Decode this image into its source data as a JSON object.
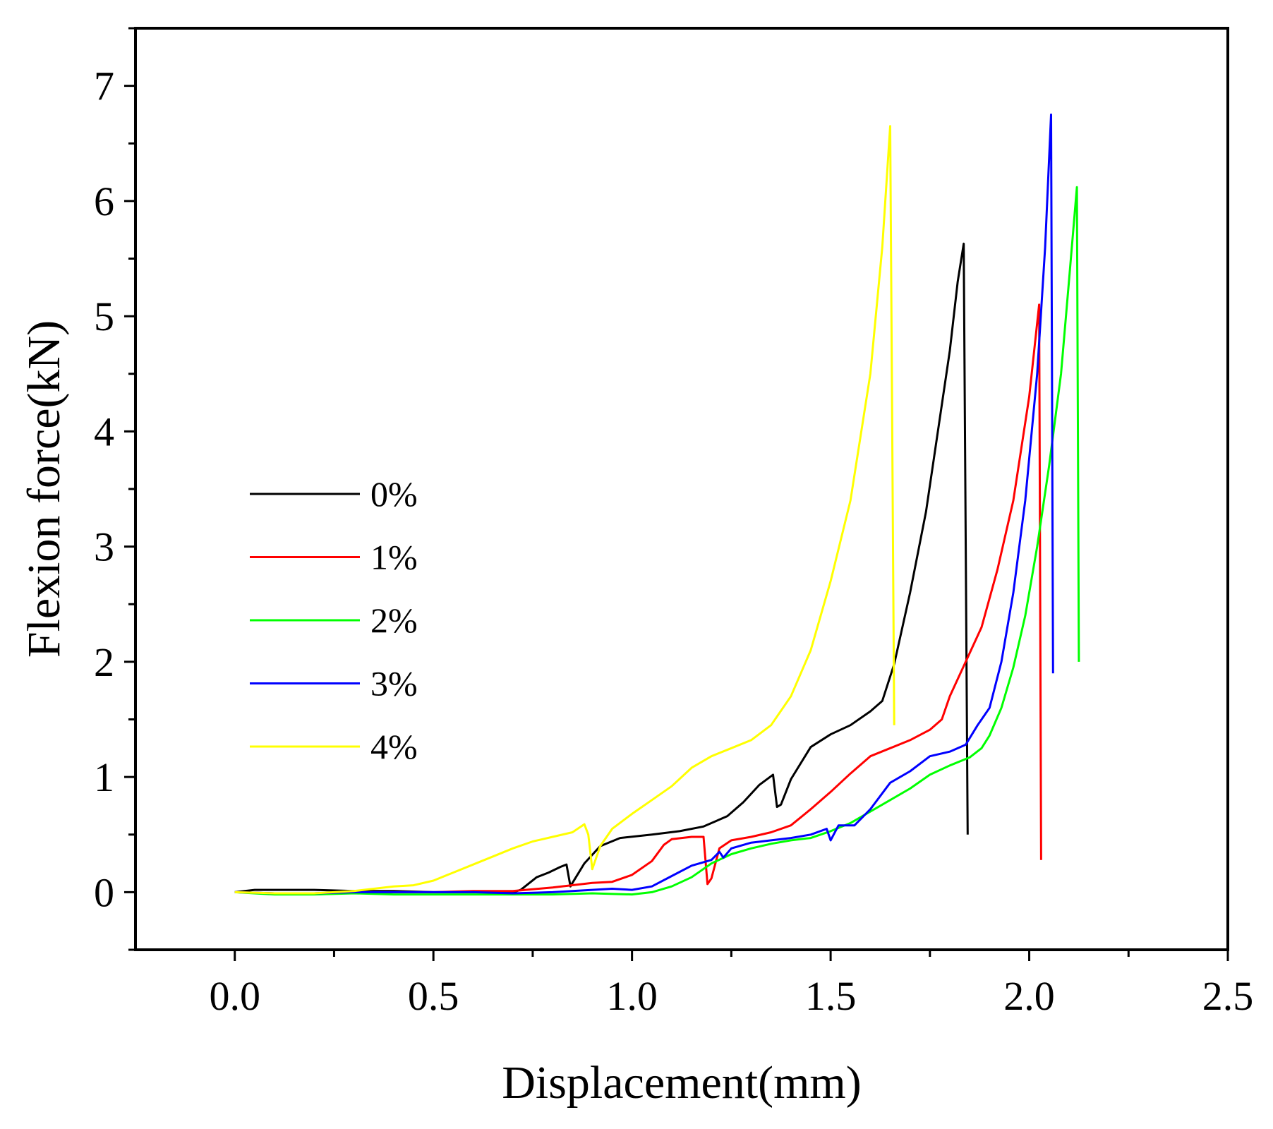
{
  "chart_data": {
    "type": "line",
    "title": "",
    "xlabel": "Displacement(mm)",
    "ylabel": "Flexion force(kN)",
    "xlim": [
      -0.25,
      2.5
    ],
    "ylim": [
      -0.5,
      7.5
    ],
    "xticks": [
      0.0,
      0.5,
      1.0,
      1.5,
      2.0,
      2.5
    ],
    "xtick_labels": [
      "0.0",
      "0.5",
      "1.0",
      "1.5",
      "2.0",
      "2.5"
    ],
    "yticks": [
      0,
      1,
      2,
      3,
      4,
      5,
      6,
      7
    ],
    "ytick_labels": [
      "0",
      "1",
      "2",
      "3",
      "4",
      "5",
      "6",
      "7"
    ],
    "grid": false,
    "legend_position": "middle-left",
    "series": [
      {
        "name": "0%",
        "color": "#000000",
        "points": [
          [
            0.0,
            0.0
          ],
          [
            0.05,
            0.02
          ],
          [
            0.1,
            0.02
          ],
          [
            0.2,
            0.02
          ],
          [
            0.3,
            0.01
          ],
          [
            0.4,
            0.01
          ],
          [
            0.5,
            0.0
          ],
          [
            0.6,
            0.0
          ],
          [
            0.7,
            0.0
          ],
          [
            0.72,
            0.02
          ],
          [
            0.76,
            0.13
          ],
          [
            0.79,
            0.17
          ],
          [
            0.82,
            0.22
          ],
          [
            0.835,
            0.24
          ],
          [
            0.845,
            0.05
          ],
          [
            0.85,
            0.08
          ],
          [
            0.88,
            0.25
          ],
          [
            0.92,
            0.4
          ],
          [
            0.97,
            0.47
          ],
          [
            1.05,
            0.5
          ],
          [
            1.12,
            0.53
          ],
          [
            1.18,
            0.57
          ],
          [
            1.24,
            0.66
          ],
          [
            1.28,
            0.78
          ],
          [
            1.32,
            0.93
          ],
          [
            1.355,
            1.02
          ],
          [
            1.365,
            0.74
          ],
          [
            1.375,
            0.76
          ],
          [
            1.4,
            0.98
          ],
          [
            1.45,
            1.26
          ],
          [
            1.5,
            1.37
          ],
          [
            1.55,
            1.45
          ],
          [
            1.6,
            1.57
          ],
          [
            1.63,
            1.66
          ],
          [
            1.66,
            1.98
          ],
          [
            1.7,
            2.6
          ],
          [
            1.74,
            3.3
          ],
          [
            1.77,
            4.0
          ],
          [
            1.8,
            4.7
          ],
          [
            1.82,
            5.3
          ],
          [
            1.835,
            5.63
          ],
          [
            1.845,
            0.5
          ]
        ]
      },
      {
        "name": "1%",
        "color": "#ff0000",
        "points": [
          [
            0.0,
            0.0
          ],
          [
            0.1,
            -0.01
          ],
          [
            0.2,
            -0.01
          ],
          [
            0.3,
            0.0
          ],
          [
            0.4,
            0.0
          ],
          [
            0.5,
            0.0
          ],
          [
            0.6,
            0.01
          ],
          [
            0.7,
            0.01
          ],
          [
            0.8,
            0.04
          ],
          [
            0.9,
            0.08
          ],
          [
            0.95,
            0.09
          ],
          [
            1.0,
            0.15
          ],
          [
            1.05,
            0.27
          ],
          [
            1.08,
            0.41
          ],
          [
            1.1,
            0.46
          ],
          [
            1.15,
            0.48
          ],
          [
            1.18,
            0.48
          ],
          [
            1.19,
            0.07
          ],
          [
            1.2,
            0.12
          ],
          [
            1.22,
            0.38
          ],
          [
            1.25,
            0.45
          ],
          [
            1.3,
            0.48
          ],
          [
            1.35,
            0.52
          ],
          [
            1.4,
            0.58
          ],
          [
            1.45,
            0.72
          ],
          [
            1.5,
            0.87
          ],
          [
            1.55,
            1.03
          ],
          [
            1.6,
            1.18
          ],
          [
            1.65,
            1.25
          ],
          [
            1.7,
            1.32
          ],
          [
            1.75,
            1.41
          ],
          [
            1.78,
            1.5
          ],
          [
            1.8,
            1.7
          ],
          [
            1.84,
            2.0
          ],
          [
            1.88,
            2.3
          ],
          [
            1.92,
            2.8
          ],
          [
            1.96,
            3.4
          ],
          [
            2.0,
            4.3
          ],
          [
            2.025,
            5.1
          ],
          [
            2.03,
            0.28
          ]
        ]
      },
      {
        "name": "2%",
        "color": "#00ff00",
        "points": [
          [
            0.0,
            0.0
          ],
          [
            0.1,
            -0.02
          ],
          [
            0.2,
            -0.02
          ],
          [
            0.3,
            -0.01
          ],
          [
            0.4,
            -0.02
          ],
          [
            0.5,
            -0.02
          ],
          [
            0.6,
            -0.02
          ],
          [
            0.7,
            -0.02
          ],
          [
            0.8,
            -0.02
          ],
          [
            0.9,
            -0.01
          ],
          [
            1.0,
            -0.02
          ],
          [
            1.05,
            0.0
          ],
          [
            1.1,
            0.05
          ],
          [
            1.15,
            0.13
          ],
          [
            1.2,
            0.25
          ],
          [
            1.25,
            0.33
          ],
          [
            1.3,
            0.38
          ],
          [
            1.35,
            0.42
          ],
          [
            1.4,
            0.45
          ],
          [
            1.45,
            0.47
          ],
          [
            1.5,
            0.53
          ],
          [
            1.55,
            0.6
          ],
          [
            1.6,
            0.7
          ],
          [
            1.65,
            0.8
          ],
          [
            1.7,
            0.9
          ],
          [
            1.75,
            1.02
          ],
          [
            1.8,
            1.1
          ],
          [
            1.85,
            1.17
          ],
          [
            1.88,
            1.25
          ],
          [
            1.9,
            1.36
          ],
          [
            1.93,
            1.6
          ],
          [
            1.96,
            1.95
          ],
          [
            1.99,
            2.4
          ],
          [
            2.02,
            3.0
          ],
          [
            2.05,
            3.7
          ],
          [
            2.08,
            4.5
          ],
          [
            2.1,
            5.3
          ],
          [
            2.12,
            6.12
          ],
          [
            2.125,
            2.0
          ]
        ]
      },
      {
        "name": "3%",
        "color": "#0000ff",
        "points": [
          [
            0.0,
            0.0
          ],
          [
            0.1,
            -0.01
          ],
          [
            0.2,
            -0.01
          ],
          [
            0.3,
            0.0
          ],
          [
            0.4,
            0.0
          ],
          [
            0.5,
            0.0
          ],
          [
            0.6,
            0.0
          ],
          [
            0.7,
            -0.01
          ],
          [
            0.8,
            0.0
          ],
          [
            0.9,
            0.02
          ],
          [
            0.95,
            0.03
          ],
          [
            1.0,
            0.02
          ],
          [
            1.05,
            0.05
          ],
          [
            1.1,
            0.14
          ],
          [
            1.15,
            0.23
          ],
          [
            1.2,
            0.28
          ],
          [
            1.22,
            0.35
          ],
          [
            1.23,
            0.3
          ],
          [
            1.25,
            0.38
          ],
          [
            1.3,
            0.43
          ],
          [
            1.35,
            0.45
          ],
          [
            1.4,
            0.47
          ],
          [
            1.45,
            0.5
          ],
          [
            1.49,
            0.55
          ],
          [
            1.5,
            0.45
          ],
          [
            1.52,
            0.58
          ],
          [
            1.56,
            0.58
          ],
          [
            1.6,
            0.72
          ],
          [
            1.65,
            0.95
          ],
          [
            1.7,
            1.05
          ],
          [
            1.75,
            1.18
          ],
          [
            1.8,
            1.22
          ],
          [
            1.84,
            1.28
          ],
          [
            1.87,
            1.45
          ],
          [
            1.9,
            1.6
          ],
          [
            1.93,
            2.0
          ],
          [
            1.96,
            2.6
          ],
          [
            1.99,
            3.4
          ],
          [
            2.02,
            4.5
          ],
          [
            2.04,
            5.6
          ],
          [
            2.055,
            6.75
          ],
          [
            2.06,
            1.9
          ]
        ]
      },
      {
        "name": "4%",
        "color": "#ffff00",
        "points": [
          [
            0.0,
            0.0
          ],
          [
            0.1,
            -0.01
          ],
          [
            0.2,
            -0.01
          ],
          [
            0.3,
            0.01
          ],
          [
            0.4,
            0.05
          ],
          [
            0.45,
            0.06
          ],
          [
            0.5,
            0.1
          ],
          [
            0.55,
            0.17
          ],
          [
            0.6,
            0.24
          ],
          [
            0.65,
            0.31
          ],
          [
            0.7,
            0.38
          ],
          [
            0.75,
            0.44
          ],
          [
            0.8,
            0.48
          ],
          [
            0.85,
            0.52
          ],
          [
            0.88,
            0.59
          ],
          [
            0.89,
            0.5
          ],
          [
            0.9,
            0.2
          ],
          [
            0.92,
            0.4
          ],
          [
            0.95,
            0.55
          ],
          [
            1.0,
            0.68
          ],
          [
            1.05,
            0.8
          ],
          [
            1.1,
            0.92
          ],
          [
            1.15,
            1.08
          ],
          [
            1.2,
            1.18
          ],
          [
            1.25,
            1.25
          ],
          [
            1.3,
            1.32
          ],
          [
            1.35,
            1.45
          ],
          [
            1.4,
            1.7
          ],
          [
            1.45,
            2.1
          ],
          [
            1.5,
            2.7
          ],
          [
            1.55,
            3.4
          ],
          [
            1.6,
            4.5
          ],
          [
            1.63,
            5.6
          ],
          [
            1.65,
            6.65
          ],
          [
            1.66,
            1.45
          ]
        ]
      }
    ]
  }
}
